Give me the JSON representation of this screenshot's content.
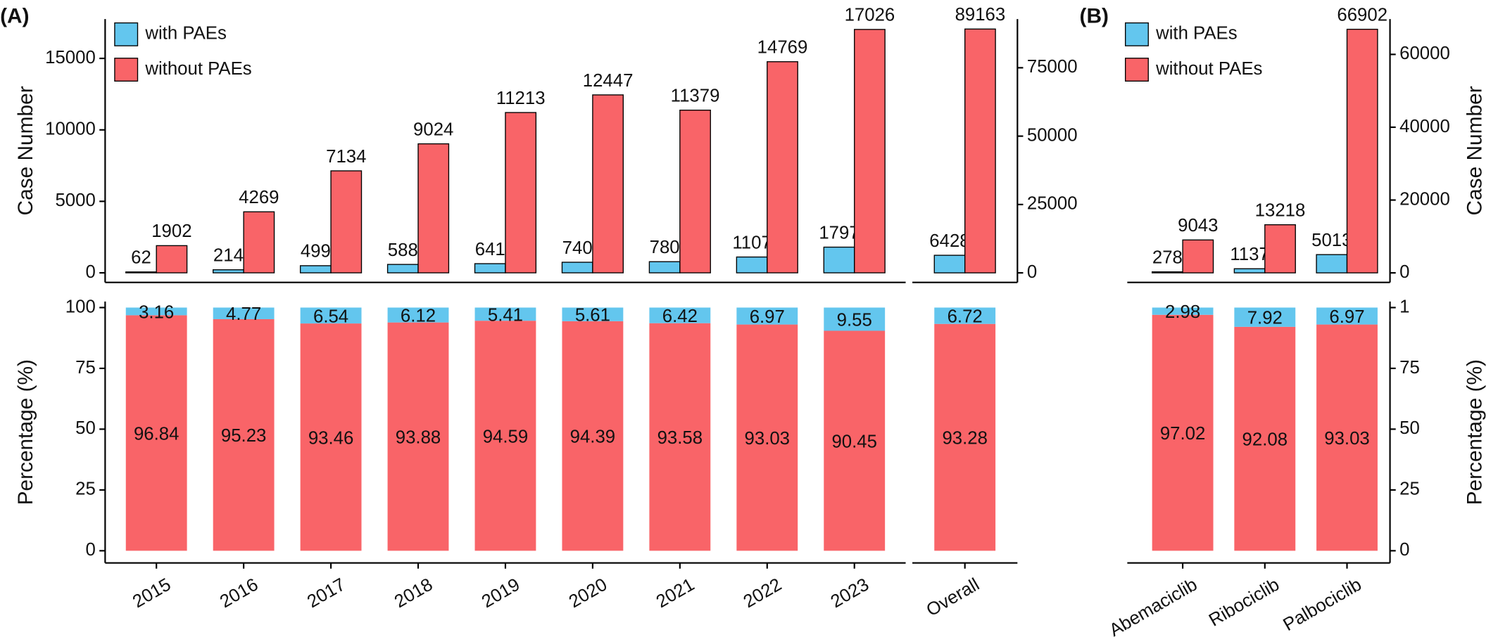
{
  "chart_data": [
    {
      "type": "bar",
      "panel_label": "(A)",
      "ylabel": "Case Number",
      "legend": "top-left",
      "categories": [
        "2015",
        "2016",
        "2017",
        "2018",
        "2019",
        "2020",
        "2021",
        "2022",
        "2023"
      ],
      "series": [
        {
          "name": "with PAEs",
          "color": "#63c6ee",
          "values": [
            62,
            214,
            499,
            588,
            641,
            740,
            780,
            1107,
            1797
          ]
        },
        {
          "name": "without PAEs",
          "color": "#f96468",
          "values": [
            1902,
            4269,
            7134,
            9024,
            11213,
            12447,
            11379,
            14769,
            17026
          ]
        }
      ],
      "ylim": [
        -670,
        17750
      ],
      "yticks": [
        0,
        5000,
        10000,
        15000
      ],
      "percent": {
        "type": "stacked_bar",
        "ylabel": "Percentage (%)",
        "ylim": [
          -5,
          102.5
        ],
        "yticks": [
          0,
          25,
          50,
          75,
          100
        ],
        "series": [
          {
            "values": [
              3.16,
              4.77,
              6.54,
              6.12,
              5.41,
              5.61,
              6.42,
              6.97,
              9.55
            ]
          },
          {
            "values": [
              96.84,
              95.23,
              93.46,
              93.88,
              94.59,
              94.39,
              93.58,
              93.03,
              90.45
            ]
          }
        ]
      }
    },
    {
      "type": "bar",
      "categories": [
        "Overall"
      ],
      "series": [
        {
          "color": "#63c6ee",
          "values": [
            6428
          ]
        },
        {
          "color": "#f96468",
          "values": [
            89163
          ]
        }
      ],
      "ylim": [
        -3490,
        92800
      ],
      "yticks": [
        0,
        25000,
        50000,
        75000
      ],
      "percent": {
        "type": "stacked_bar",
        "ylim": [
          -5,
          102.5
        ],
        "series": [
          {
            "values": [
              6.72
            ]
          },
          {
            "values": [
              93.28
            ]
          }
        ]
      }
    },
    {
      "type": "bar",
      "panel_label": "(B)",
      "ylabel": "Case Number",
      "legend": "top-left",
      "categories": [
        "Abemaciclib",
        "Ribociclib",
        "Palbociclib"
      ],
      "series": [
        {
          "name": "with PAEs",
          "color": "#63c6ee",
          "values": [
            278,
            1137,
            5013
          ]
        },
        {
          "name": "without PAEs",
          "color": "#f96468",
          "values": [
            9043,
            13218,
            66902
          ]
        }
      ],
      "ylim": [
        -2620,
        69700
      ],
      "yticks": [
        0,
        20000,
        40000,
        60000
      ],
      "percent": {
        "type": "stacked_bar",
        "ylabel": "Percentage (%)",
        "ylim": [
          -5,
          102.5
        ],
        "yticks": [
          0,
          25,
          50,
          75,
          {
            "value": 100,
            "label": "1"
          }
        ],
        "series": [
          {
            "values": [
              2.98,
              7.92,
              6.97
            ]
          },
          {
            "values": [
              97.02,
              92.08,
              93.03
            ]
          }
        ]
      }
    }
  ]
}
